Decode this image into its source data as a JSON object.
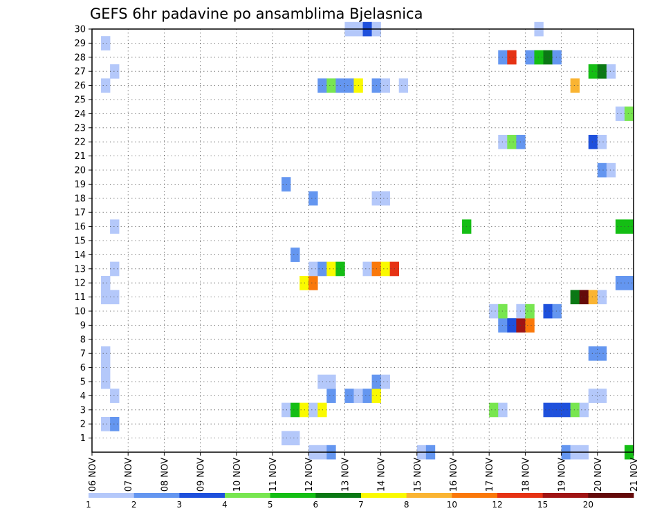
{
  "chart_data": {
    "type": "heatmap",
    "title": "GEFS 6hr padavine po ansamblima Bjelasnica",
    "x_tick_labels": [
      "06 NOV",
      "07 NOV",
      "08 NOV",
      "09 NOV",
      "10 NOV",
      "11 NOV",
      "12 NOV",
      "13 NOV",
      "14 NOV",
      "15 NOV",
      "16 NOV",
      "17 NOV",
      "18 NOV",
      "19 NOV",
      "20 NOV",
      "21 NOV"
    ],
    "y_tick_labels": [
      "1",
      "2",
      "3",
      "4",
      "5",
      "6",
      "7",
      "8",
      "9",
      "10",
      "11",
      "12",
      "13",
      "14",
      "15",
      "16",
      "17",
      "18",
      "19",
      "20",
      "21",
      "22",
      "23",
      "24",
      "25",
      "26",
      "27",
      "28",
      "29",
      "30"
    ],
    "x_range_days": [
      0,
      15
    ],
    "y_range_members": [
      0,
      30
    ],
    "grid": true,
    "legend_placement": "bottom",
    "legend_labels": [
      "1",
      "2",
      "3",
      "4",
      "5",
      "6",
      "7",
      "8",
      "10",
      "12",
      "15",
      "20"
    ],
    "legend_colors": [
      "#b4c8fa",
      "#6496f0",
      "#1e50dc",
      "#78e650",
      "#14be14",
      "#0a7814",
      "#fafa00",
      "#fab432",
      "#fa780a",
      "#e63214",
      "#a01414",
      "#640a0a"
    ],
    "cells": [
      {
        "m": 2,
        "s": 1,
        "c": 1
      },
      {
        "m": 2,
        "s": 2,
        "c": 2
      },
      {
        "m": 4,
        "s": 2,
        "c": 1
      },
      {
        "m": 5,
        "s": 1,
        "c": 1
      },
      {
        "m": 6,
        "s": 1,
        "c": 1
      },
      {
        "m": 7,
        "s": 1,
        "c": 1
      },
      {
        "m": 11,
        "s": 1,
        "c": 1
      },
      {
        "m": 11,
        "s": 2,
        "c": 1
      },
      {
        "m": 12,
        "s": 1,
        "c": 1
      },
      {
        "m": 13,
        "s": 2,
        "c": 1
      },
      {
        "m": 16,
        "s": 2,
        "c": 1
      },
      {
        "m": 26,
        "s": 1,
        "c": 1
      },
      {
        "m": 27,
        "s": 2,
        "c": 1
      },
      {
        "m": 29,
        "s": 1,
        "c": 1
      },
      {
        "m": 0,
        "s": 24,
        "c": 1
      },
      {
        "m": 0,
        "s": 25,
        "c": 1
      },
      {
        "m": 0,
        "s": 26,
        "c": 2
      },
      {
        "m": 1,
        "s": 21,
        "c": 1
      },
      {
        "m": 1,
        "s": 22,
        "c": 1
      },
      {
        "m": 3,
        "s": 21,
        "c": 1
      },
      {
        "m": 3,
        "s": 22,
        "c": 5
      },
      {
        "m": 3,
        "s": 23,
        "c": 7
      },
      {
        "m": 3,
        "s": 24,
        "c": 1
      },
      {
        "m": 3,
        "s": 25,
        "c": 7
      },
      {
        "m": 4,
        "s": 26,
        "c": 2
      },
      {
        "m": 4,
        "s": 28,
        "c": 2
      },
      {
        "m": 4,
        "s": 29,
        "c": 1
      },
      {
        "m": 4,
        "s": 30,
        "c": 2
      },
      {
        "m": 4,
        "s": 31,
        "c": 7
      },
      {
        "m": 5,
        "s": 25,
        "c": 1
      },
      {
        "m": 5,
        "s": 26,
        "c": 1
      },
      {
        "m": 5,
        "s": 31,
        "c": 2
      },
      {
        "m": 5,
        "s": 32,
        "c": 1
      },
      {
        "m": 12,
        "s": 23,
        "c": 7
      },
      {
        "m": 12,
        "s": 24,
        "c": 9
      },
      {
        "m": 13,
        "s": 24,
        "c": 1
      },
      {
        "m": 13,
        "s": 25,
        "c": 2
      },
      {
        "m": 13,
        "s": 26,
        "c": 7
      },
      {
        "m": 13,
        "s": 27,
        "c": 5
      },
      {
        "m": 13,
        "s": 30,
        "c": 1
      },
      {
        "m": 13,
        "s": 31,
        "c": 9
      },
      {
        "m": 13,
        "s": 32,
        "c": 7
      },
      {
        "m": 13,
        "s": 33,
        "c": 10
      },
      {
        "m": 14,
        "s": 22,
        "c": 2
      },
      {
        "m": 18,
        "s": 24,
        "c": 2
      },
      {
        "m": 19,
        "s": 21,
        "c": 2
      },
      {
        "m": 18,
        "s": 31,
        "c": 1
      },
      {
        "m": 18,
        "s": 32,
        "c": 1
      },
      {
        "m": 26,
        "s": 25,
        "c": 2
      },
      {
        "m": 26,
        "s": 26,
        "c": 4
      },
      {
        "m": 26,
        "s": 27,
        "c": 2
      },
      {
        "m": 26,
        "s": 28,
        "c": 2
      },
      {
        "m": 26,
        "s": 29,
        "c": 7
      },
      {
        "m": 26,
        "s": 31,
        "c": 2
      },
      {
        "m": 26,
        "s": 32,
        "c": 1
      },
      {
        "m": 26,
        "s": 34,
        "c": 1
      },
      {
        "m": 30,
        "s": 28,
        "c": 1
      },
      {
        "m": 30,
        "s": 29,
        "c": 1
      },
      {
        "m": 30,
        "s": 30,
        "c": 3
      },
      {
        "m": 30,
        "s": 31,
        "c": 1
      },
      {
        "m": 0,
        "s": 36,
        "c": 1
      },
      {
        "m": 0,
        "s": 37,
        "c": 2
      },
      {
        "m": 16,
        "s": 41,
        "c": 5
      },
      {
        "m": 3,
        "s": 44,
        "c": 4
      },
      {
        "m": 3,
        "s": 45,
        "c": 1
      },
      {
        "m": 9,
        "s": 45,
        "c": 2
      },
      {
        "m": 9,
        "s": 46,
        "c": 3
      },
      {
        "m": 9,
        "s": 47,
        "c": 11
      },
      {
        "m": 9,
        "s": 48,
        "c": 9
      },
      {
        "m": 10,
        "s": 44,
        "c": 1
      },
      {
        "m": 10,
        "s": 45,
        "c": 4
      },
      {
        "m": 10,
        "s": 47,
        "c": 1
      },
      {
        "m": 10,
        "s": 48,
        "c": 4
      },
      {
        "m": 10,
        "s": 50,
        "c": 3
      },
      {
        "m": 10,
        "s": 51,
        "c": 2
      },
      {
        "m": 22,
        "s": 45,
        "c": 1
      },
      {
        "m": 22,
        "s": 46,
        "c": 4
      },
      {
        "m": 22,
        "s": 47,
        "c": 2
      },
      {
        "m": 28,
        "s": 45,
        "c": 2
      },
      {
        "m": 28,
        "s": 46,
        "c": 10
      },
      {
        "m": 28,
        "s": 48,
        "c": 2
      },
      {
        "m": 28,
        "s": 49,
        "c": 5
      },
      {
        "m": 28,
        "s": 50,
        "c": 6
      },
      {
        "m": 28,
        "s": 51,
        "c": 2
      },
      {
        "m": 30,
        "s": 49,
        "c": 1
      },
      {
        "m": 0,
        "s": 52,
        "c": 2
      },
      {
        "m": 0,
        "s": 53,
        "c": 1
      },
      {
        "m": 0,
        "s": 54,
        "c": 1
      },
      {
        "m": 3,
        "s": 50,
        "c": 3
      },
      {
        "m": 3,
        "s": 51,
        "c": 3
      },
      {
        "m": 3,
        "s": 52,
        "c": 3
      },
      {
        "m": 3,
        "s": 53,
        "c": 4
      },
      {
        "m": 3,
        "s": 54,
        "c": 1
      },
      {
        "m": 4,
        "s": 55,
        "c": 1
      },
      {
        "m": 4,
        "s": 56,
        "c": 1
      },
      {
        "m": 7,
        "s": 55,
        "c": 2
      },
      {
        "m": 7,
        "s": 56,
        "c": 2
      },
      {
        "m": 11,
        "s": 53,
        "c": 6
      },
      {
        "m": 11,
        "s": 54,
        "c": 12
      },
      {
        "m": 11,
        "s": 55,
        "c": 8
      },
      {
        "m": 11,
        "s": 56,
        "c": 1
      },
      {
        "m": 12,
        "s": 58,
        "c": 2
      },
      {
        "m": 12,
        "s": 59,
        "c": 2
      },
      {
        "m": 16,
        "s": 58,
        "c": 5
      },
      {
        "m": 16,
        "s": 59,
        "c": 5
      },
      {
        "m": 20,
        "s": 56,
        "c": 2
      },
      {
        "m": 20,
        "s": 57,
        "c": 1
      },
      {
        "m": 22,
        "s": 55,
        "c": 3
      },
      {
        "m": 22,
        "s": 56,
        "c": 1
      },
      {
        "m": 24,
        "s": 58,
        "c": 1
      },
      {
        "m": 24,
        "s": 59,
        "c": 4
      },
      {
        "m": 26,
        "s": 53,
        "c": 8
      },
      {
        "m": 27,
        "s": 55,
        "c": 5
      },
      {
        "m": 27,
        "s": 56,
        "c": 6
      },
      {
        "m": 27,
        "s": 57,
        "c": 1
      },
      {
        "m": 0,
        "s": 59,
        "c": 5
      }
    ]
  }
}
